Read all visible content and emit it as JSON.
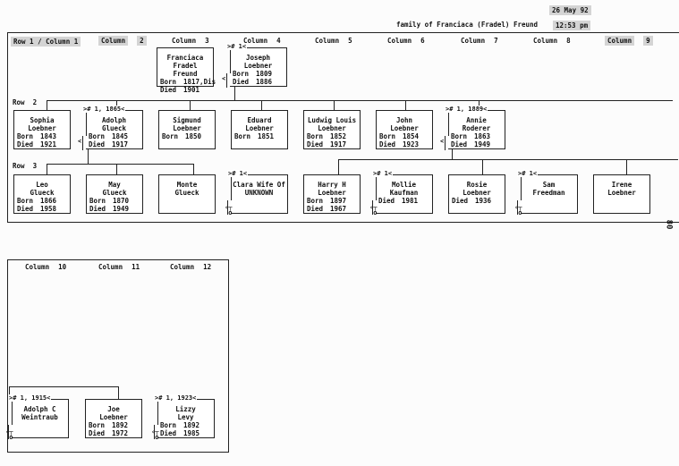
{
  "header": {
    "title": "family of Franciaca (Fradel) Freund",
    "date": "26 May 92",
    "time": "12:53 pm"
  },
  "panel1": {
    "row1_label": "Row 1 / Column 1",
    "row2_label": "Row  2",
    "row3_label": "Row  3",
    "columns": [
      {
        "label": "Column",
        "num": "2"
      },
      {
        "label": "Column",
        "num": "3"
      },
      {
        "label": "Column",
        "num": "4"
      },
      {
        "label": "Column",
        "num": "5"
      },
      {
        "label": "Column",
        "num": "6"
      },
      {
        "label": "Column",
        "num": "7"
      },
      {
        "label": "Column",
        "num": "8"
      },
      {
        "label": "Column",
        "num": "9"
      }
    ],
    "page_number": "80"
  },
  "panel2": {
    "columns": [
      {
        "label": "Column",
        "num": "10"
      },
      {
        "label": "Column",
        "num": "11"
      },
      {
        "label": "Column",
        "num": "12"
      }
    ]
  },
  "labels": {
    "born": "Born",
    "died": "Died"
  },
  "people": [
    {
      "name": [
        "Franciaca Fradel",
        "Freund"
      ],
      "born": "1817,Dis",
      "died": "1901"
    },
    {
      "name": [
        "Joseph",
        "Loebner"
      ],
      "born": "1809",
      "died": "1886",
      "marker": "># 1<"
    },
    {
      "name": [
        "Sophia",
        "Loebner"
      ],
      "born": "1843",
      "died": "1921"
    },
    {
      "name": [
        "Adolph",
        "Glueck"
      ],
      "born": "1845",
      "died": "1917",
      "marker": "># 1, 1865<"
    },
    {
      "name": [
        "Sigmund",
        "Loebner"
      ],
      "born": "1850"
    },
    {
      "name": [
        "Eduard",
        "Loebner"
      ],
      "born": "1851"
    },
    {
      "name": [
        "Ludwig Louis",
        "Loebner"
      ],
      "born": "1852",
      "died": "1917"
    },
    {
      "name": [
        "John",
        "Loebner"
      ],
      "born": "1854",
      "died": "1923"
    },
    {
      "name": [
        "Annie",
        "Roderer"
      ],
      "born": "1863",
      "died": "1949",
      "marker": "># 1, 1889<"
    },
    {
      "name": [
        "Leo",
        "Glueck"
      ],
      "born": "1866",
      "died": "1958"
    },
    {
      "name": [
        "May",
        "Glueck"
      ],
      "born": "1870",
      "died": "1949"
    },
    {
      "name": [
        "Monte",
        "Glueck"
      ]
    },
    {
      "name": [
        "Clara Wife Of",
        "UNKNOWN"
      ],
      "marker": "># 1<"
    },
    {
      "name": [
        "Harry H",
        "Loebner"
      ],
      "born": "1897",
      "died": "1967"
    },
    {
      "name": [
        "Mollie",
        "Kaufman"
      ],
      "died": "1981",
      "marker": "># 1<"
    },
    {
      "name": [
        "Rosie",
        "Loebner"
      ],
      "died": "1936"
    },
    {
      "name": [
        "Sam",
        "Freedman"
      ],
      "marker": "># 1<"
    },
    {
      "name": [
        "Irene",
        "Loebner"
      ]
    },
    {
      "name": [
        "Adolph C",
        "Weintraub"
      ],
      "marker": "># 1, 1915<"
    },
    {
      "name": [
        "Joe",
        "Loebner"
      ],
      "born": "1892",
      "died": "1972"
    },
    {
      "name": [
        "Lizzy",
        "Levy"
      ],
      "born": "1892",
      "died": "1985",
      "marker": "># 1, 1923<"
    }
  ]
}
